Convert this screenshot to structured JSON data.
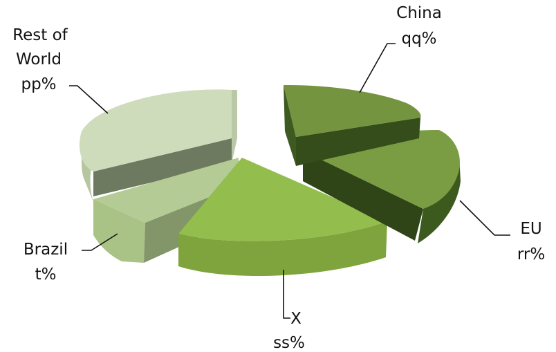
{
  "chart_data": {
    "type": "pie",
    "style": "3d-exploded",
    "slices": [
      {
        "key": "china",
        "name": "China",
        "value_label": "qq%",
        "color": "#74943f"
      },
      {
        "key": "eu",
        "name": "EU",
        "value_label": "rr%",
        "color": "#7a9c42"
      },
      {
        "key": "x",
        "name": "X",
        "value_label": "ss%",
        "color": "#8fbb4c"
      },
      {
        "key": "brazil",
        "name": "Brazil",
        "value_label": "t%",
        "color": "#a9c387"
      },
      {
        "key": "rest",
        "name_lines": [
          "Rest of",
          "World"
        ],
        "value_label": "pp%",
        "color": "#cfdcbb"
      }
    ]
  }
}
